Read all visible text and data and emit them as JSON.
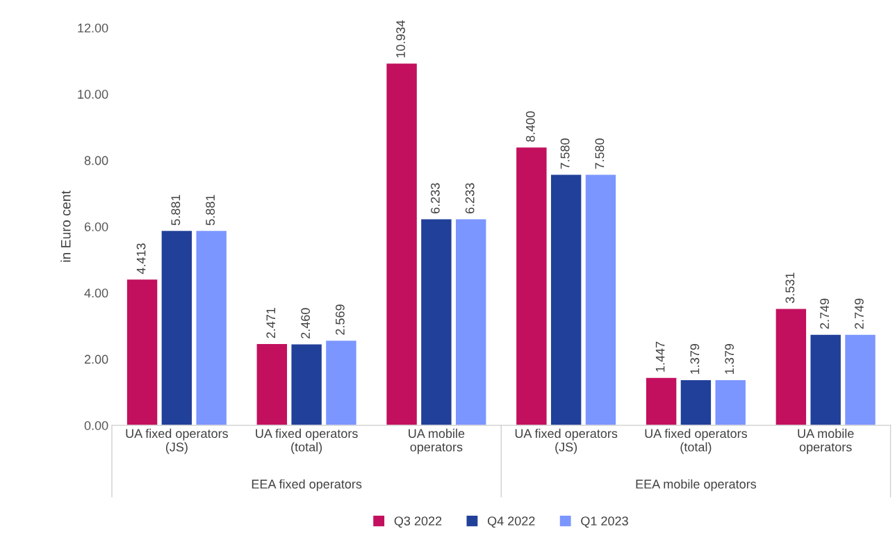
{
  "chart_data": {
    "type": "bar",
    "ylabel": "in Euro cent",
    "categories": [
      "UA fixed operators\n(JS)",
      "UA fixed operators\n(total)",
      "UA mobile\noperators",
      "UA fixed operators\n(JS)",
      "UA fixed operators\n(total)",
      "UA mobile\noperators"
    ],
    "annotations": [
      "EEA fixed operators",
      "EEA mobile operators"
    ],
    "series": [
      {
        "name": "Q3 2022",
        "color": "#c2105e",
        "values": [
          4.413,
          2.471,
          10.934,
          8.4,
          1.447,
          3.531
        ],
        "value_labels": [
          "4.413",
          "2.471",
          "10.934",
          "8.400",
          "1.447",
          "3.531"
        ]
      },
      {
        "name": "Q4 2022",
        "color": "#21409a",
        "values": [
          5.881,
          2.46,
          6.233,
          7.58,
          1.379,
          2.749
        ],
        "value_labels": [
          "5.881",
          "2.460",
          "6.233",
          "7.580",
          "1.379",
          "2.749"
        ]
      },
      {
        "name": "Q1 2023",
        "color": "#7b96ff",
        "values": [
          5.881,
          2.569,
          6.233,
          7.58,
          1.379,
          2.749
        ],
        "value_labels": [
          "5.881",
          "2.569",
          "6.233",
          "7.580",
          "1.379",
          "2.749"
        ]
      }
    ],
    "ylim": [
      0,
      12
    ],
    "yticks": [
      {
        "value": 0,
        "label": "0.00"
      },
      {
        "value": 2,
        "label": "2.00"
      },
      {
        "value": 4,
        "label": "4.00"
      },
      {
        "value": 6,
        "label": "6.00"
      },
      {
        "value": 8,
        "label": "8.00"
      },
      {
        "value": 10,
        "label": "10.00"
      },
      {
        "value": 12,
        "label": "12.00"
      }
    ],
    "grid": false,
    "legend": "bottom"
  }
}
